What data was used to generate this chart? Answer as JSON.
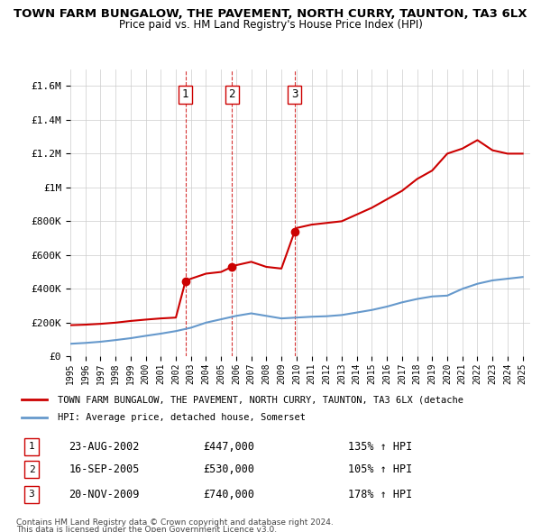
{
  "title1": "TOWN FARM BUNGALOW, THE PAVEMENT, NORTH CURRY, TAUNTON, TA3 6LX",
  "title2": "Price paid vs. HM Land Registry's House Price Index (HPI)",
  "legend_line1": "TOWN FARM BUNGALOW, THE PAVEMENT, NORTH CURRY, TAUNTON, TA3 6LX (detache",
  "legend_line2": "HPI: Average price, detached house, Somerset",
  "footer1": "Contains HM Land Registry data © Crown copyright and database right 2024.",
  "footer2": "This data is licensed under the Open Government Licence v3.0.",
  "sale_points": [
    {
      "num": 1,
      "date": "23-AUG-2002",
      "price": 447000,
      "pct": "135%",
      "year": 2002.64
    },
    {
      "num": 2,
      "date": "16-SEP-2005",
      "price": 530000,
      "pct": "105%",
      "year": 2005.71
    },
    {
      "num": 3,
      "date": "20-NOV-2009",
      "price": 740000,
      "pct": "178%",
      "year": 2009.88
    }
  ],
  "ylim": [
    0,
    1700000
  ],
  "xlim_start": 1995.0,
  "xlim_end": 2025.5,
  "red_color": "#cc0000",
  "blue_color": "#6699cc",
  "bg_color": "#ffffff",
  "grid_color": "#cccccc",
  "hpi_data_years": [
    1995,
    1996,
    1997,
    1998,
    1999,
    2000,
    2001,
    2002,
    2003,
    2004,
    2005,
    2006,
    2007,
    2008,
    2009,
    2010,
    2011,
    2012,
    2013,
    2014,
    2015,
    2016,
    2017,
    2018,
    2019,
    2020,
    2021,
    2022,
    2023,
    2024,
    2025
  ],
  "hpi_values": [
    75000,
    80000,
    87000,
    97000,
    108000,
    122000,
    135000,
    150000,
    170000,
    200000,
    220000,
    240000,
    255000,
    240000,
    225000,
    230000,
    235000,
    238000,
    245000,
    260000,
    275000,
    295000,
    320000,
    340000,
    355000,
    360000,
    400000,
    430000,
    450000,
    460000,
    470000
  ],
  "red_data_years": [
    1995,
    1996,
    1997,
    1998,
    1999,
    2000,
    2001,
    2002.0,
    2002.64,
    2003,
    2004,
    2005.0,
    2005.71,
    2006,
    2007,
    2008,
    2009.0,
    2009.88,
    2010,
    2011,
    2012,
    2013,
    2014,
    2015,
    2016,
    2017,
    2018,
    2019,
    2020,
    2021,
    2022,
    2023,
    2024,
    2025
  ],
  "red_values": [
    185000,
    188000,
    193000,
    200000,
    210000,
    218000,
    225000,
    230000,
    447000,
    460000,
    490000,
    500000,
    530000,
    540000,
    560000,
    530000,
    520000,
    740000,
    760000,
    780000,
    790000,
    800000,
    840000,
    880000,
    930000,
    980000,
    1050000,
    1100000,
    1200000,
    1230000,
    1280000,
    1220000,
    1200000,
    1200000
  ]
}
